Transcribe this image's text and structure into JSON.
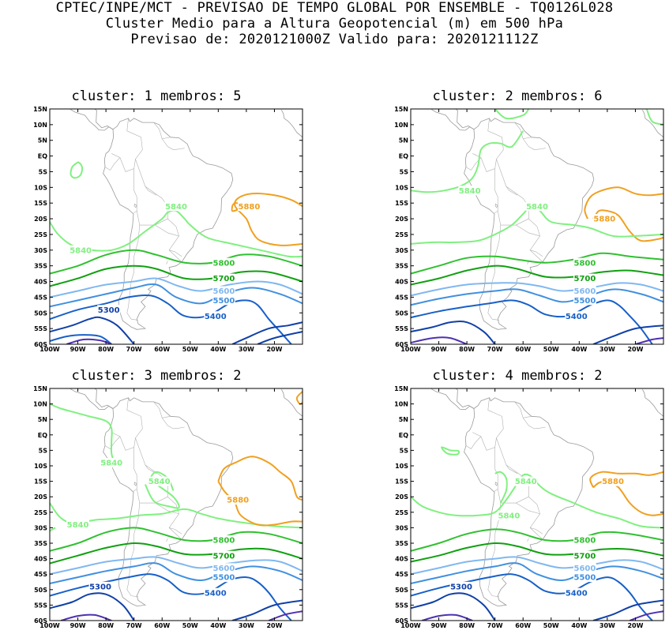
{
  "header": {
    "line1": "CPTEC/INPE/MCT - PREVISAO DE TEMPO GLOBAL POR ENSEMBLE - TQ0126L028",
    "line2": "Cluster Medio para a Altura Geopotencial (m) em 500 hPa",
    "line3": "Previsao de: 2020121000Z   Valido para: 2020121112Z"
  },
  "map": {
    "lat_labels": [
      "15N",
      "10N",
      "5N",
      "EQ",
      "5S",
      "10S",
      "15S",
      "20S",
      "25S",
      "30S",
      "35S",
      "40S",
      "45S",
      "50S",
      "55S",
      "60S"
    ],
    "lon_labels": [
      "100W",
      "90W",
      "80W",
      "70W",
      "60W",
      "50W",
      "40W",
      "30W",
      "20W"
    ],
    "lat_range": [
      -60,
      15
    ],
    "lon_range": [
      -100,
      -10
    ]
  },
  "contour_colors": {
    "5880": "#f0a020",
    "5840": "#80f080",
    "5800": "#30c030",
    "5700": "#10a010",
    "5600": "#80b8f0",
    "5500": "#4090e0",
    "5400": "#1860c8",
    "5300": "#1040a8",
    "5200": "#5030b0"
  },
  "panels": [
    {
      "title": "cluster: 1   membros: 5",
      "labels": [
        {
          "text": "5880",
          "lon": -29,
          "lat": -16,
          "color": "5880"
        },
        {
          "text": "5840",
          "lon": -55,
          "lat": -16,
          "color": "5840"
        },
        {
          "text": "5840",
          "lon": -89,
          "lat": -30,
          "color": "5840"
        },
        {
          "text": "5800",
          "lon": -38,
          "lat": -34,
          "color": "5800"
        },
        {
          "text": "5700",
          "lon": -38,
          "lat": -39,
          "color": "5700"
        },
        {
          "text": "5600",
          "lon": -38,
          "lat": -43,
          "color": "5600"
        },
        {
          "text": "5500",
          "lon": -38,
          "lat": -46,
          "color": "5500"
        },
        {
          "text": "5400",
          "lon": -41,
          "lat": -51,
          "color": "5400"
        },
        {
          "text": "5300",
          "lon": -79,
          "lat": -49,
          "color": "5300"
        }
      ]
    },
    {
      "title": "cluster: 2   membros: 6",
      "labels": [
        {
          "text": "5840",
          "lon": -79,
          "lat": -11,
          "color": "5840"
        },
        {
          "text": "5880",
          "lon": -31,
          "lat": -20,
          "color": "5880"
        },
        {
          "text": "5840",
          "lon": -55,
          "lat": -16,
          "color": "5840"
        },
        {
          "text": "5800",
          "lon": -38,
          "lat": -34,
          "color": "5800"
        },
        {
          "text": "5700",
          "lon": -38,
          "lat": -39,
          "color": "5700"
        },
        {
          "text": "5600",
          "lon": -38,
          "lat": -43,
          "color": "5600"
        },
        {
          "text": "5500",
          "lon": -38,
          "lat": -46,
          "color": "5500"
        },
        {
          "text": "5400",
          "lon": -41,
          "lat": -51,
          "color": "5400"
        }
      ]
    },
    {
      "title": "cluster: 3   membros: 2",
      "labels": [
        {
          "text": "5840",
          "lon": -78,
          "lat": -9,
          "color": "5840"
        },
        {
          "text": "5840",
          "lon": -61,
          "lat": -15,
          "color": "5840"
        },
        {
          "text": "5880",
          "lon": -33,
          "lat": -21,
          "color": "5880"
        },
        {
          "text": "5840",
          "lon": -90,
          "lat": -29,
          "color": "5840"
        },
        {
          "text": "5800",
          "lon": -38,
          "lat": -34,
          "color": "5800"
        },
        {
          "text": "5700",
          "lon": -38,
          "lat": -39,
          "color": "5700"
        },
        {
          "text": "5600",
          "lon": -38,
          "lat": -43,
          "color": "5600"
        },
        {
          "text": "5500",
          "lon": -38,
          "lat": -46,
          "color": "5500"
        },
        {
          "text": "5400",
          "lon": -41,
          "lat": -51,
          "color": "5400"
        },
        {
          "text": "5300",
          "lon": -82,
          "lat": -49,
          "color": "5300"
        }
      ]
    },
    {
      "title": "cluster: 4   membros: 2",
      "labels": [
        {
          "text": "5880",
          "lon": -28,
          "lat": -15,
          "color": "5880"
        },
        {
          "text": "5840",
          "lon": -59,
          "lat": -15,
          "color": "5840"
        },
        {
          "text": "5840",
          "lon": -65,
          "lat": -26,
          "color": "5840"
        },
        {
          "text": "5800",
          "lon": -38,
          "lat": -34,
          "color": "5800"
        },
        {
          "text": "5700",
          "lon": -38,
          "lat": -39,
          "color": "5700"
        },
        {
          "text": "5600",
          "lon": -38,
          "lat": -43,
          "color": "5600"
        },
        {
          "text": "5500",
          "lon": -38,
          "lat": -46,
          "color": "5500"
        },
        {
          "text": "5400",
          "lon": -41,
          "lat": -51,
          "color": "5400"
        },
        {
          "text": "5300",
          "lon": -82,
          "lat": -49,
          "color": "5300"
        }
      ]
    }
  ]
}
